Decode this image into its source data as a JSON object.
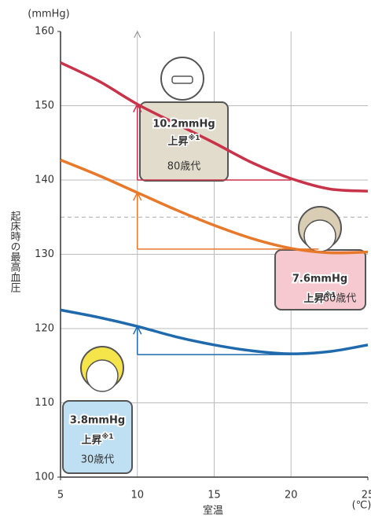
{
  "chart_data": {
    "type": "line",
    "y_unit": "(mmHg)",
    "ylabel": "起床時の最高血圧",
    "xlabel": "室温",
    "x_unit": "(℃)",
    "x": [
      5,
      7.5,
      10,
      12.5,
      15,
      17.5,
      20,
      22.5,
      25
    ],
    "xlim": [
      5,
      25
    ],
    "xticks": [
      5,
      10,
      15,
      20,
      25
    ],
    "ylim": [
      100,
      160
    ],
    "yticks": [
      100,
      110,
      120,
      130,
      140,
      150,
      160
    ],
    "grid": true,
    "reference_line": 135,
    "series": [
      {
        "name": "80歳代",
        "color": "#c8334a",
        "values": [
          155.8,
          153.3,
          150.2,
          147.6,
          145,
          142.3,
          140.2,
          138.8,
          138.5
        ],
        "annotation": {
          "label": "10.2mmHg",
          "sub": "上昇",
          "note": "※1",
          "x": 10,
          "base": 140,
          "top": 150.2,
          "x_end": 20
        }
      },
      {
        "name": "60歳代",
        "color": "#e8782a",
        "values": [
          142.7,
          140.6,
          138.3,
          136,
          133.9,
          132.1,
          130.8,
          130.2,
          130.3
        ],
        "annotation": {
          "label": "7.6mmHg",
          "sub": "上昇",
          "note": "※1",
          "x": 10,
          "base": 130.7,
          "top": 138.3,
          "x_end": 21.8
        }
      },
      {
        "name": "30歳代",
        "color": "#1f6aad",
        "values": [
          122.5,
          121.5,
          120.3,
          118.9,
          117.8,
          117,
          116.6,
          116.9,
          117.8
        ],
        "annotation": {
          "label": "3.8mmHg",
          "sub": "上昇",
          "note": "※1",
          "x": 10,
          "base": 116.5,
          "top": 120.3,
          "x_end": 20
        }
      }
    ]
  }
}
